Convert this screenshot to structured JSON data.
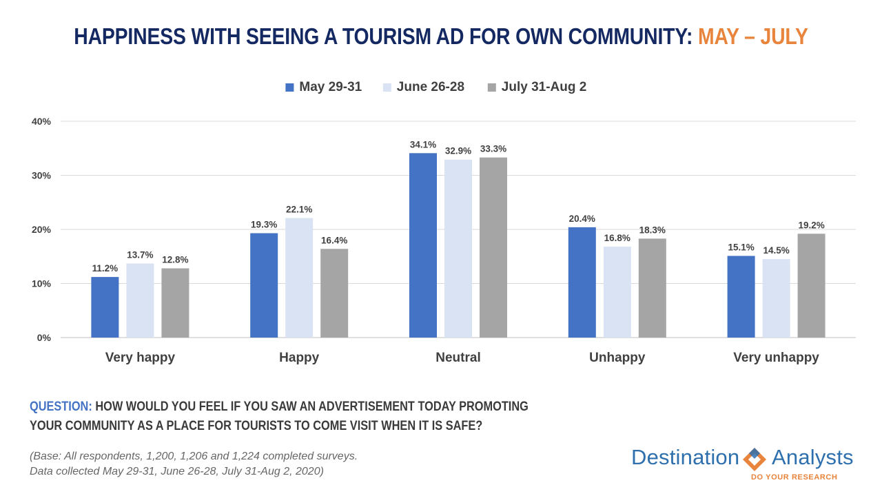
{
  "title": {
    "main": "HAPPINESS WITH SEEING A TOURISM AD FOR OWN COMMUNITY: ",
    "highlight": "MAY – JULY"
  },
  "question": {
    "label": "QUESTION:",
    "line1": " HOW WOULD YOU FEEL IF YOU SAW AN ADVERTISEMENT TODAY PROMOTING",
    "line2": "YOUR COMMUNITY AS A PLACE FOR TOURISTS TO COME VISIT WHEN IT IS SAFE?"
  },
  "base_note": {
    "line1": "(Base: All respondents, 1,200, 1,206 and 1,224 completed surveys.",
    "line2": "Data collected  May 29-31, June 26-28, July 31-Aug 2, 2020)"
  },
  "logo": {
    "word1": "Destination",
    "word2": "Analysts",
    "tagline": "DO YOUR RESEARCH"
  },
  "colors": {
    "series1": "#4472c4",
    "series2": "#dae3f3",
    "series3": "#a5a5a5",
    "title": "#142862",
    "accent": "#e8843c"
  },
  "chart_data": {
    "type": "bar",
    "categories": [
      "Very happy",
      "Happy",
      "Neutral",
      "Unhappy",
      "Very unhappy"
    ],
    "series": [
      {
        "name": "May 29-31",
        "values": [
          11.2,
          19.3,
          34.1,
          20.4,
          15.1
        ],
        "color": "#4472c4"
      },
      {
        "name": "June 26-28",
        "values": [
          13.7,
          22.1,
          32.9,
          16.8,
          14.5
        ],
        "color": "#dae3f3"
      },
      {
        "name": "July 31-Aug 2",
        "values": [
          12.8,
          16.4,
          33.3,
          18.3,
          19.2
        ],
        "color": "#a5a5a5"
      }
    ],
    "value_suffix": "%",
    "ylim": [
      0,
      40
    ],
    "yticks": [
      0,
      10,
      20,
      30,
      40
    ],
    "ytick_labels": [
      "0%",
      "10%",
      "20%",
      "30%",
      "40%"
    ],
    "grid": true,
    "legend_position": "top-center"
  }
}
